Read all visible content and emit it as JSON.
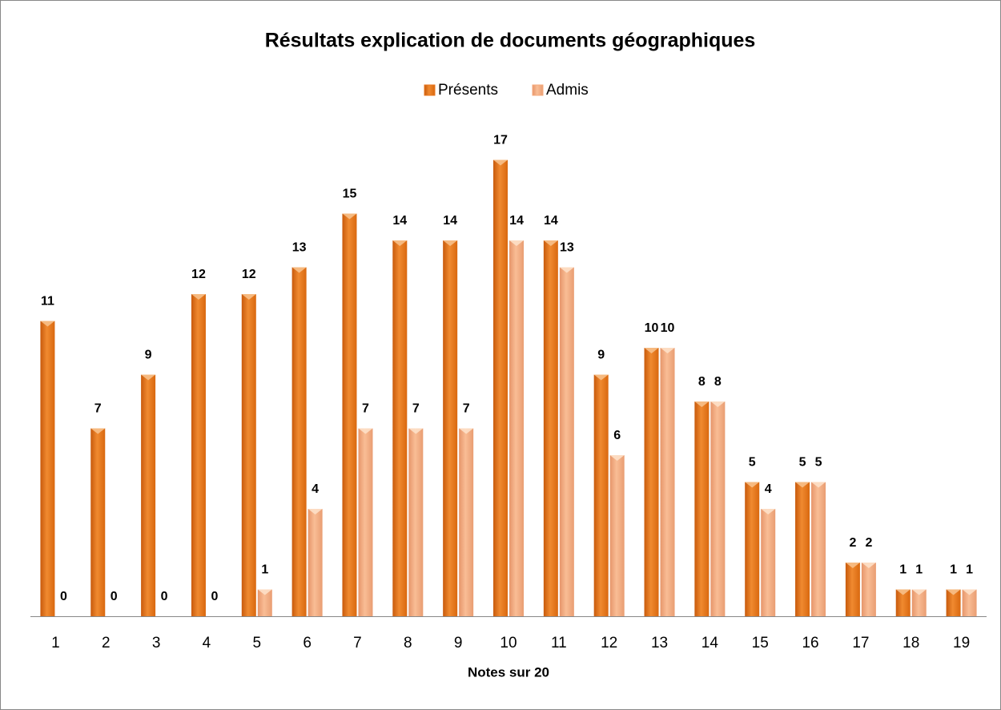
{
  "chart_data": {
    "type": "bar",
    "title": "Résultats explication de documents géographiques",
    "x_label": "Notes sur 20",
    "categories": [
      1,
      2,
      3,
      4,
      5,
      6,
      7,
      8,
      9,
      10,
      11,
      12,
      13,
      14,
      15,
      16,
      17,
      18,
      19
    ],
    "series": [
      {
        "name": "Présents",
        "color": "#e8761e",
        "values": [
          11,
          7,
          9,
          12,
          12,
          13,
          15,
          14,
          14,
          17,
          14,
          9,
          10,
          8,
          5,
          5,
          2,
          1,
          1
        ]
      },
      {
        "name": "Admis",
        "color": "#f5aa7c",
        "values": [
          0,
          0,
          0,
          0,
          1,
          4,
          7,
          7,
          7,
          14,
          13,
          6,
          10,
          8,
          4,
          5,
          2,
          1,
          1
        ]
      }
    ],
    "legend": "top"
  }
}
